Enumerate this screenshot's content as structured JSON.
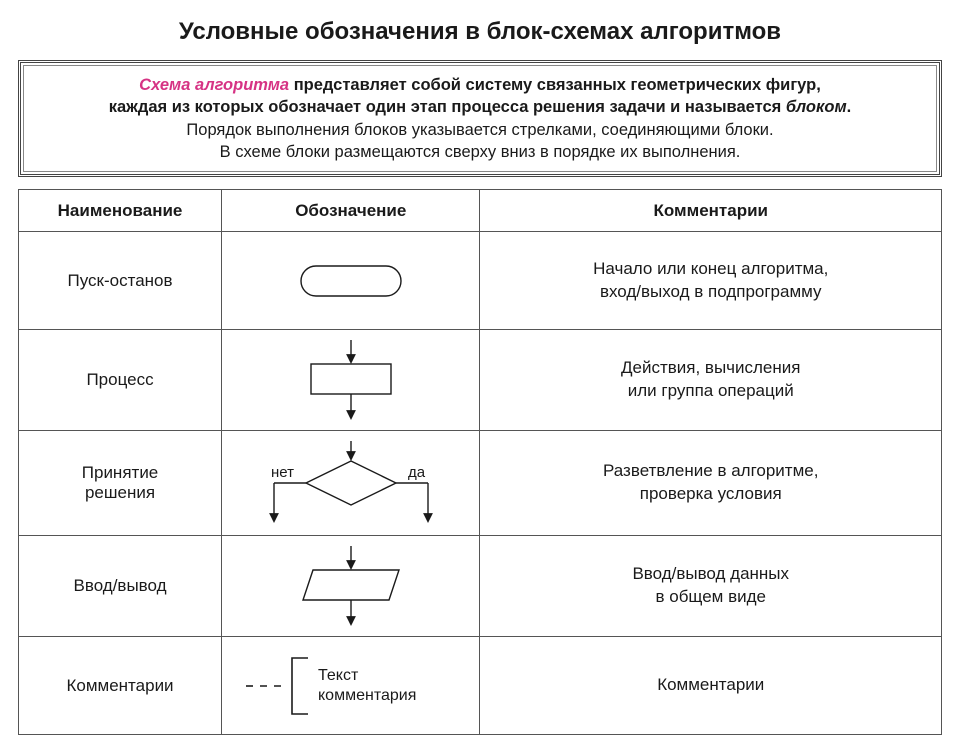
{
  "title": "Условные обозначения в блок-схемах алгоритмов",
  "intro": {
    "line1_pink": "Схема алгоритма",
    "line1_rest": " представляет собой систему связанных геометрических фигур,",
    "line2a": "каждая из которых обозначает один этап процесса решения задачи и называется ",
    "line2_ital": "блоком",
    "line2b": ".",
    "line3": "Порядок выполнения блоков указывается стрелками, соединяющими блоки.",
    "line4": "В схеме блоки размещаются сверху вниз в порядке их выполнения."
  },
  "headers": {
    "name": "Наименование",
    "symbol": "Обозначение",
    "comment": "Комментарии"
  },
  "rows": [
    {
      "name": "Пуск-останов",
      "comment": "Начало или конец алгоритма,\nвход/выход в подпрограмму"
    },
    {
      "name": "Процесс",
      "comment": "Действия, вычисления\nили группа операций"
    },
    {
      "name": "Принятие\nрешения",
      "comment": "Разветвление в алгоритме,\nпроверка условия",
      "labels": {
        "no": "нет",
        "yes": "да"
      }
    },
    {
      "name": "Ввод/вывод",
      "comment": "Ввод/вывод данных\nв общем виде"
    },
    {
      "name": "Комментарии",
      "comment": "Комментарии",
      "bracket_text": "Текст\nкомментария"
    }
  ],
  "style": {
    "stroke": "#1a1a1a",
    "stroke_width": 1.4,
    "fill": "#ffffff",
    "arrowhead": "#1a1a1a",
    "font_size_table": 17,
    "font_size_small": 15,
    "title_fontsize": 24,
    "intro_fontsize": 16.5,
    "pink": "#d63384",
    "border_color": "#555555",
    "page_bg": "#ffffff"
  }
}
